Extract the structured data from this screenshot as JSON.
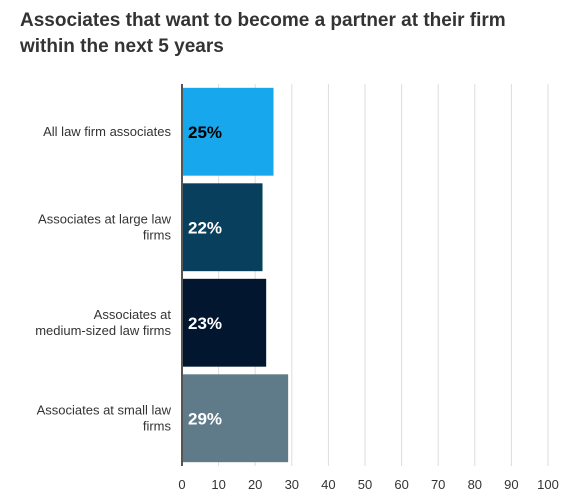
{
  "chart_data": {
    "type": "bar",
    "orientation": "horizontal",
    "title": "Associates that want to become a partner at their firm within the next 5 years",
    "categories": [
      [
        "All law firm associates"
      ],
      [
        "Associates at large law",
        "firms"
      ],
      [
        "Associates at",
        "medium-sized law firms"
      ],
      [
        "Associates at small law",
        "firms"
      ]
    ],
    "values": [
      25,
      22,
      23,
      29
    ],
    "data_labels": [
      "25%",
      "22%",
      "23%",
      "29%"
    ],
    "colors": [
      "#16a7ec",
      "#083f5c",
      "#02172f",
      "#5f7b89"
    ],
    "label_colors": [
      "#000000",
      "#ffffff",
      "#ffffff",
      "#ffffff"
    ],
    "xlim": [
      0,
      100
    ],
    "x_ticks": [
      0,
      10,
      20,
      30,
      40,
      50,
      60,
      70,
      80,
      90,
      100
    ],
    "x_tick_labels": [
      "0",
      "10",
      "20",
      "30",
      "40",
      "50",
      "60",
      "70",
      "80",
      "90",
      "100"
    ],
    "grid": true,
    "xlabel": "",
    "ylabel": ""
  }
}
